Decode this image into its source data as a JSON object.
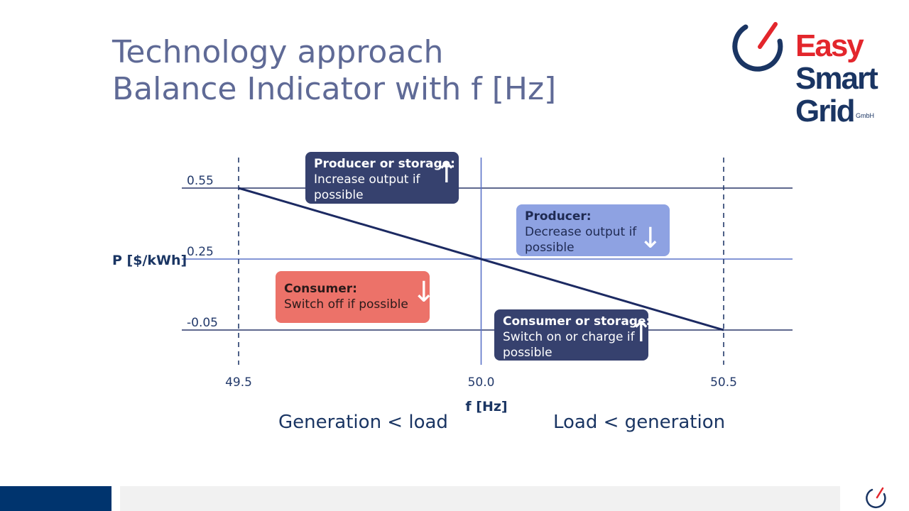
{
  "slide": {
    "title_line1": "Technology approach",
    "title_line2": "Balance Indicator with f [Hz]"
  },
  "logo": {
    "line1": "Easy",
    "line2": "Smart",
    "line3": "Grid",
    "suffix": "GmbH",
    "colors": {
      "red": "#e3262c",
      "navy": "#1a3563"
    }
  },
  "chart_data": {
    "type": "line",
    "xlabel": "f [Hz]",
    "ylabel": "P [$/kWh]",
    "xlim": [
      49.4,
      50.7
    ],
    "ylim": [
      -0.2,
      0.68
    ],
    "x_ticks": [
      "49.5",
      "50.0",
      "50.5"
    ],
    "x_tick_values": [
      49.5,
      50.0,
      50.5
    ],
    "y_ticks": [
      "0.55",
      "0.25",
      "-0.05"
    ],
    "y_tick_values": [
      0.55,
      0.25,
      -0.05
    ],
    "grid": "horizontal lines at y ticks; vertical dashed at 49.5 and 50.5; solid vertical at 50.0",
    "series": [
      {
        "x": [
          49.5,
          50.0,
          50.5
        ],
        "y": [
          0.55,
          0.25,
          -0.05
        ],
        "color": "#1c2a62"
      }
    ],
    "annotations": [
      {
        "id": "producer_storage",
        "title": "Producer or storage:",
        "text": "Increase output if possible",
        "arrow": "up",
        "color": "#36416e"
      },
      {
        "id": "producer",
        "title": "Producer:",
        "text": "Decrease output if possible",
        "arrow": "down",
        "color": "#8ea2e2"
      },
      {
        "id": "consumer",
        "title": "Consumer:",
        "text": "Switch off if possible",
        "arrow": "down",
        "color": "#ec7269"
      },
      {
        "id": "consumer_storage",
        "title": "Consumer or storage:",
        "text": "Switch on or charge if possible",
        "arrow": "up",
        "color": "#36416e"
      }
    ]
  },
  "captions": {
    "left": "Generation < load",
    "right": "Load < generation"
  },
  "arrows": {
    "up": "↑",
    "down": "↓"
  },
  "colors": {
    "title": "#5f6a96",
    "navy": "#1a3563",
    "hline_mid": "#5b73c9",
    "footer_bar": "#00346e",
    "footer_gray": "#f1f1f1"
  }
}
